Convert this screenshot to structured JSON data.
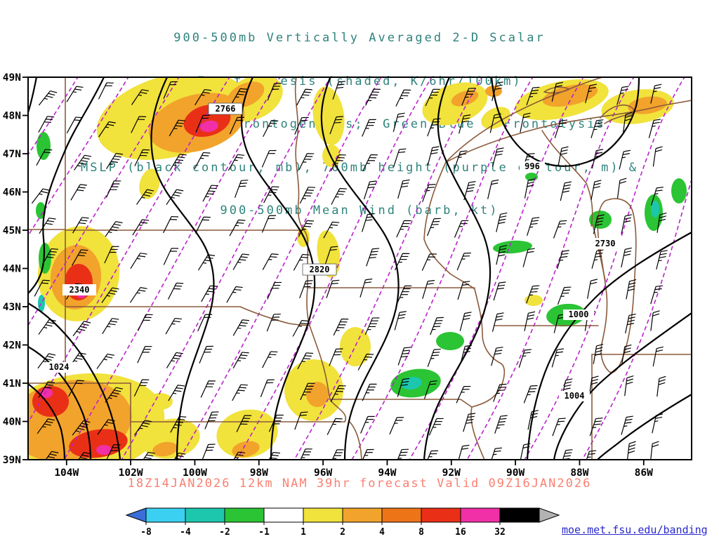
{
  "title": {
    "lines": [
      "900-500mb Vertically Averaged 2-D Scalar",
      "Frontogenesis (shaded, K/6hr/100km)",
      "Yellow/Red = Frontogenesis;  Green/Blue = Frontolysis",
      "MSLP (black contour, mb), 700mb height (purple contour, m) &",
      "900-500mb Mean Wind (barb, kt)"
    ],
    "color": "#2f837c"
  },
  "map": {
    "lat_labels": [
      "49N",
      "48N",
      "47N",
      "46N",
      "45N",
      "44N",
      "43N",
      "42N",
      "41N",
      "40N",
      "39N"
    ],
    "lon_labels": [
      "104W",
      "102W",
      "100W",
      "98W",
      "96W",
      "94W",
      "92W",
      "90W",
      "88W",
      "86W"
    ],
    "contour_labels": {
      "mslp": [
        {
          "text": "996"
        },
        {
          "text": "1000"
        },
        {
          "text": "1004"
        },
        {
          "text": "1024"
        }
      ],
      "height": [
        {
          "text": "2766"
        },
        {
          "text": "2820"
        },
        {
          "text": "2340"
        },
        {
          "text": "2730"
        }
      ]
    }
  },
  "footer": {
    "text": "18Z14JAN2026 12km NAM 39hr forecast Valid 09Z16JAN2026",
    "color": "#fa8072"
  },
  "colorbar": {
    "labels": [
      "-8",
      "-4",
      "-2",
      "-1",
      "1",
      "2",
      "4",
      "8",
      "16",
      "32"
    ],
    "segment_colors": [
      "#3bd0f2",
      "#1cc7ae",
      "#2bc434",
      "#ffffff",
      "#f1e23c",
      "#f2a32b",
      "#ee7418",
      "#e93016",
      "#f12fa7",
      "#000000"
    ],
    "left_arrow": "#3a6fd8",
    "right_arrow": "#b3b3b3"
  },
  "credit": {
    "text": "moe.met.fsu.edu/banding",
    "color": "#2a2ad0"
  },
  "colors": {
    "yellow": "#f1e23c",
    "gold": "#f2a32b",
    "orange": "#ee7418",
    "red": "#e93016",
    "magenta": "#f12fa7",
    "green": "#2bc434",
    "teal": "#1cc7ae",
    "cyan": "#3bd0f2",
    "blue": "#3a6fd8",
    "purple_contour": "#bb22cc",
    "state_border": "#8a5a3b",
    "black_contour": "#000000"
  }
}
